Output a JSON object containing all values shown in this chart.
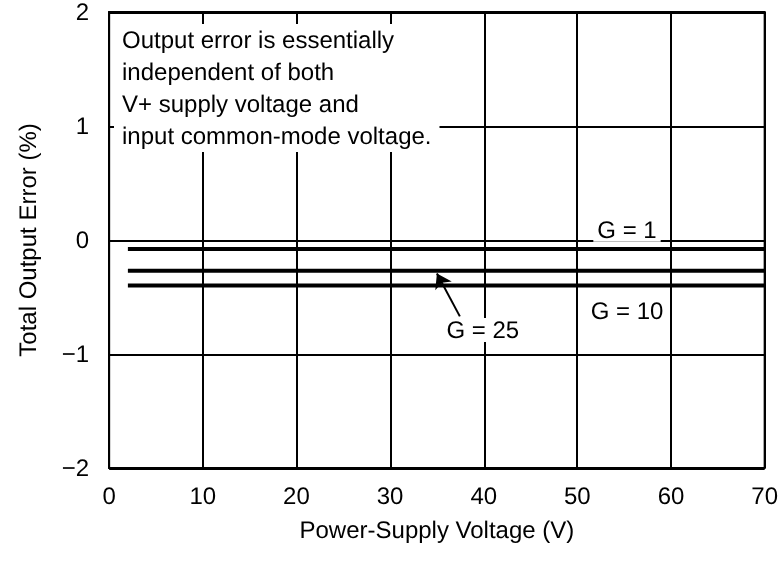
{
  "chart_data": {
    "type": "line",
    "xlabel": "Power-Supply Voltage (V)",
    "ylabel": "Total Output Error (%)",
    "annotations": [
      "Output error is essentially\nindependent of both\nV+ supply voltage and\ninput common-mode voltage."
    ],
    "x": [
      2,
      70
    ],
    "series": [
      {
        "name": "G = 1",
        "color": "#000000",
        "values": [
          -0.08,
          -0.08
        ]
      },
      {
        "name": "G = 25",
        "color": "#000000",
        "values": [
          -0.27,
          -0.27
        ]
      },
      {
        "name": "G = 10",
        "color": "#000000",
        "values": [
          -0.4,
          -0.4
        ]
      }
    ],
    "xlim": [
      0,
      70
    ],
    "xticks": [
      0,
      10,
      20,
      30,
      40,
      50,
      60,
      70
    ],
    "ylim": [
      -2,
      2
    ],
    "yticks": [
      -2,
      -1,
      0,
      1,
      2
    ],
    "grid": true,
    "marker": "none",
    "line_style": "solid"
  }
}
